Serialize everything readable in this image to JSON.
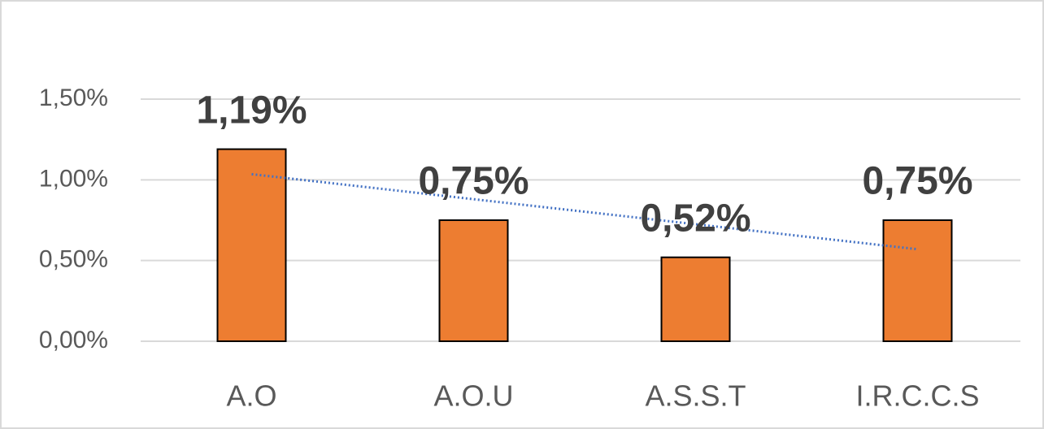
{
  "chart_data": {
    "type": "bar",
    "categories": [
      "A.O",
      "A.O.U",
      "A.S.S.T",
      "I.R.C.C.S"
    ],
    "values": [
      1.19,
      0.75,
      0.52,
      0.75
    ],
    "value_labels": [
      "1,19%",
      "0,75%",
      "0,52%",
      "0,75%"
    ],
    "color": "#ed7d31",
    "ylim": [
      0,
      1.5
    ],
    "yticks": [
      {
        "value": 0,
        "label": "0,00%"
      },
      {
        "value": 0.5,
        "label": "0,50%"
      },
      {
        "value": 1,
        "label": "1,00%"
      },
      {
        "value": 1.5,
        "label": "1,50%"
      }
    ],
    "grid": true,
    "trendline": "linear",
    "trendline_color": "#4472c4"
  }
}
